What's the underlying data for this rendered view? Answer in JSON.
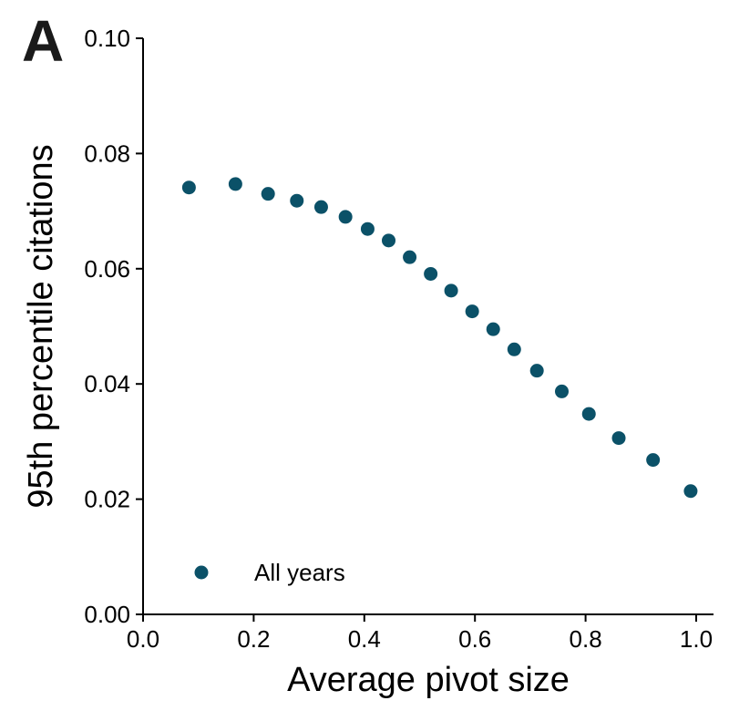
{
  "panel_label": "A",
  "colors": {
    "marker": "#0b5168",
    "axis": "#000000"
  },
  "chart_data": {
    "type": "scatter",
    "title": "",
    "xlabel": "Average pivot size",
    "ylabel": "95th percentile citations",
    "xlim": [
      0.0,
      1.03
    ],
    "ylim": [
      0.0,
      0.1
    ],
    "xticks": [
      "0.0",
      "0.2",
      "0.4",
      "0.6",
      "0.8",
      "1.0"
    ],
    "yticks": [
      "0.00",
      "0.02",
      "0.04",
      "0.06",
      "0.08",
      "0.10"
    ],
    "legend": {
      "position": "lower-left",
      "entries": [
        "All years"
      ]
    },
    "grid": false,
    "series": [
      {
        "name": "All years",
        "x": [
          0.083,
          0.167,
          0.226,
          0.278,
          0.322,
          0.366,
          0.406,
          0.444,
          0.482,
          0.52,
          0.557,
          0.595,
          0.633,
          0.671,
          0.712,
          0.757,
          0.806,
          0.86,
          0.922,
          0.99
        ],
        "y": [
          0.0741,
          0.0747,
          0.073,
          0.0718,
          0.0707,
          0.069,
          0.0669,
          0.0649,
          0.062,
          0.0591,
          0.0562,
          0.0526,
          0.0495,
          0.046,
          0.0423,
          0.0387,
          0.0348,
          0.0306,
          0.0268,
          0.0214
        ]
      }
    ]
  }
}
